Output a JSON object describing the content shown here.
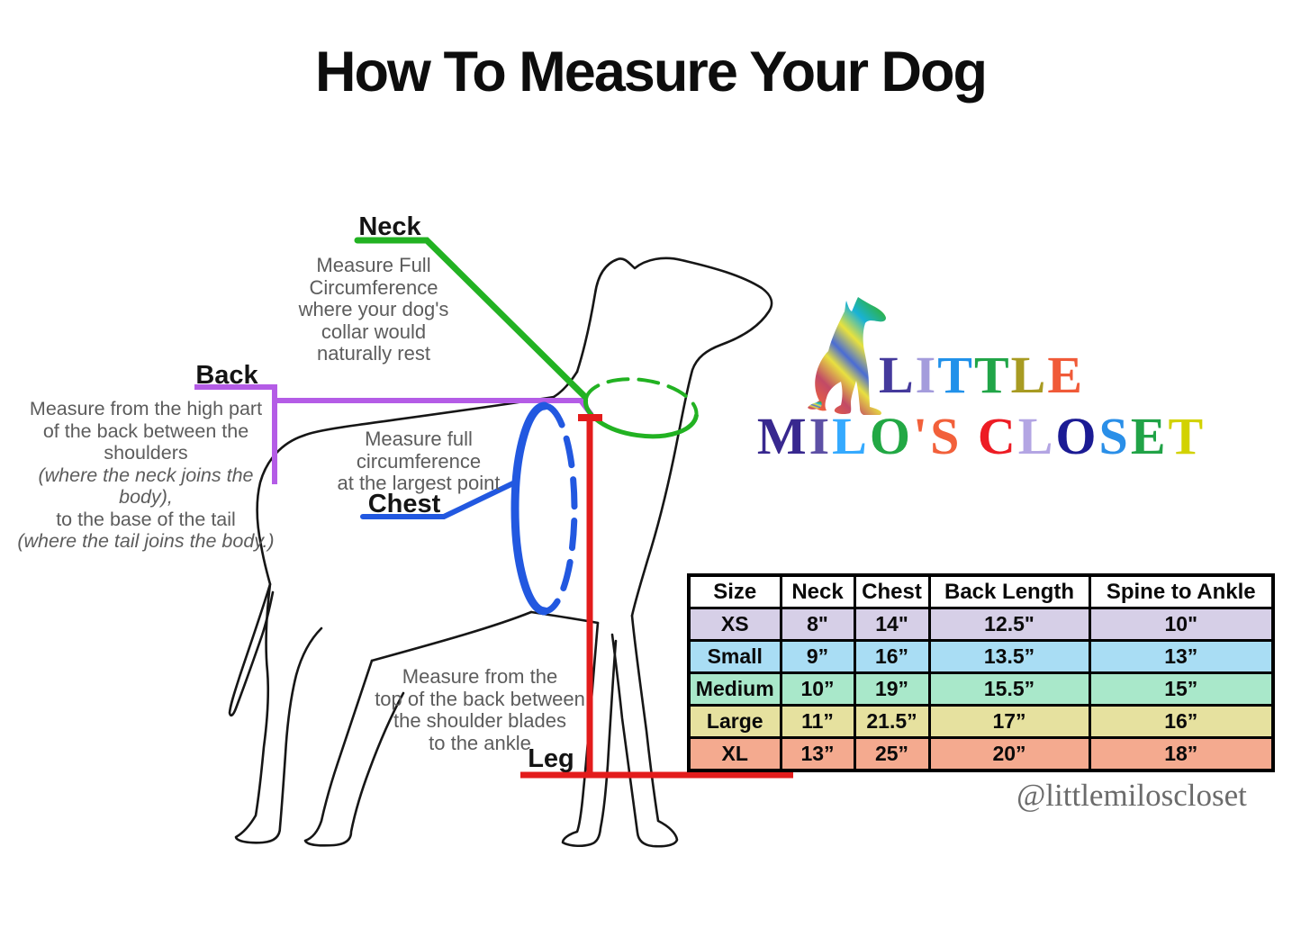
{
  "title": "How To Measure Your Dog",
  "diagram": {
    "neck": {
      "label": "Neck",
      "description": "Measure Full\nCircumference\nwhere your dog's\ncollar would\nnaturally rest",
      "color": "#22b222"
    },
    "back": {
      "label": "Back",
      "color": "#b45ce6",
      "description_lines": [
        {
          "text": "Measure from the high part",
          "italic": false
        },
        {
          "text": "of the back between the",
          "italic": false
        },
        {
          "text": "shoulders",
          "italic": false
        },
        {
          "text": "(where the neck joins the body),",
          "italic": true
        },
        {
          "text": "to the base of the tail",
          "italic": false
        },
        {
          "text": "(where the tail joins the body.)",
          "italic": true
        }
      ]
    },
    "chest": {
      "label": "Chest",
      "description": "Measure full\ncircumference\nat the largest point",
      "color": "#2258e0"
    },
    "leg": {
      "label": "Leg",
      "description": "Measure from the\ntop of the back between\nthe shoulder blades\nto the ankle",
      "color": "#e31c1c"
    }
  },
  "logo": {
    "line1": [
      {
        "ch": "L",
        "color": "#453a9c"
      },
      {
        "ch": "I",
        "color": "#a49cdc"
      },
      {
        "ch": "T",
        "color": "#2191ea"
      },
      {
        "ch": "T",
        "color": "#21a548"
      },
      {
        "ch": "L",
        "color": "#a89b22"
      },
      {
        "ch": "E",
        "color": "#f05a38"
      }
    ],
    "line2": [
      {
        "ch": "M",
        "color": "#38288f"
      },
      {
        "ch": "I",
        "color": "#5d50a5"
      },
      {
        "ch": "L",
        "color": "#35aaff"
      },
      {
        "ch": "O",
        "color": "#22a844"
      },
      {
        "ch": "'",
        "color": "#f2603a"
      },
      {
        "ch": "S",
        "color": "#f2603a"
      },
      {
        "ch": " ",
        "color": "#000000"
      },
      {
        "ch": "C",
        "color": "#ed1c24"
      },
      {
        "ch": "L",
        "color": "#b3a5e3"
      },
      {
        "ch": "O",
        "color": "#1b1b94"
      },
      {
        "ch": "S",
        "color": "#2a8fe8"
      },
      {
        "ch": "E",
        "color": "#21a347"
      },
      {
        "ch": "T",
        "color": "#d2d200"
      }
    ],
    "dog_silhouette_colors": [
      "#2db24b",
      "#19b2d6",
      "#e8e23e",
      "#4a6cd4",
      "#e8e040",
      "#c24a66",
      "#f0623c"
    ]
  },
  "size_chart": {
    "columns": [
      "Size",
      "Neck",
      "Chest",
      "Back Length",
      "Spine to Ankle"
    ],
    "rows": [
      {
        "cells": [
          "XS",
          "8\"",
          "14\"",
          "12.5\"",
          "10\""
        ],
        "color": "#d6cfe7"
      },
      {
        "cells": [
          "Small",
          "9”",
          "16”",
          "13.5”",
          "13”"
        ],
        "color": "#a9ddf4"
      },
      {
        "cells": [
          "Medium",
          "10”",
          "19”",
          "15.5”",
          "15”"
        ],
        "color": "#a9e8ca"
      },
      {
        "cells": [
          "Large",
          "11”",
          "21.5”",
          "17”",
          "16”"
        ],
        "color": "#e6e19f"
      },
      {
        "cells": [
          "XL",
          "13”",
          "25”",
          "20”",
          "18”"
        ],
        "color": "#f4aa8f"
      }
    ]
  },
  "social_handle": "@littlemiloscloset"
}
